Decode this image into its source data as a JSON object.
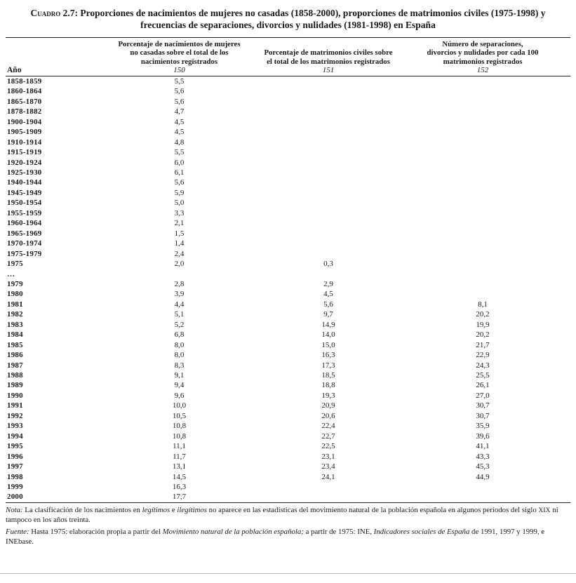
{
  "page": {
    "title_label": "Cuadro 2.7:",
    "title_text": "Proporciones de nacimientos de mujeres no casadas (1858-2000), proporciones de matrimonios civiles (1975-1998) y frecuencias de separaciones, divorcios y nulidades (1981-1998) en España"
  },
  "table": {
    "columns": [
      {
        "label": "Año",
        "number": ""
      },
      {
        "label": "Porcentaje de nacimientos de mujeres\nno casadas sobre el total de los\nnacimientos registrados",
        "number": "150"
      },
      {
        "label": "Porcentaje de matrimonios civiles sobre\nel total de los matrimonios registrados",
        "number": "151"
      },
      {
        "label": "Número de separaciones,\ndivorcios y nulidades por cada 100\nmatrimonios registrados",
        "number": "152"
      }
    ],
    "rows": [
      [
        "1858-1859",
        "5,5",
        "",
        ""
      ],
      [
        "1860-1864",
        "5,6",
        "",
        ""
      ],
      [
        "1865-1870",
        "5,6",
        "",
        ""
      ],
      [
        "1878-1882",
        "4,7",
        "",
        ""
      ],
      [
        "1900-1904",
        "4,5",
        "",
        ""
      ],
      [
        "1905-1909",
        "4,5",
        "",
        ""
      ],
      [
        "1910-1914",
        "4,8",
        "",
        ""
      ],
      [
        "1915-1919",
        "5,5",
        "",
        ""
      ],
      [
        "1920-1924",
        "6,0",
        "",
        ""
      ],
      [
        "1925-1930",
        "6,1",
        "",
        ""
      ],
      [
        "1940-1944",
        "5,6",
        "",
        ""
      ],
      [
        "1945-1949",
        "5,9",
        "",
        ""
      ],
      [
        "1950-1954",
        "5,0",
        "",
        ""
      ],
      [
        "1955-1959",
        "3,3",
        "",
        ""
      ],
      [
        "1960-1964",
        "2,1",
        "",
        ""
      ],
      [
        "1965-1969",
        "1,5",
        "",
        ""
      ],
      [
        "1970-1974",
        "1,4",
        "",
        ""
      ],
      [
        "1975-1979",
        "2,4",
        "",
        ""
      ],
      [
        "1975",
        "2,0",
        "0,3",
        ""
      ],
      [
        "…",
        "",
        "",
        ""
      ],
      [
        "1979",
        "2,8",
        "2,9",
        ""
      ],
      [
        "1980",
        "3,9",
        "4,5",
        ""
      ],
      [
        "1981",
        "4,4",
        "5,6",
        "8,1"
      ],
      [
        "1982",
        "5,1",
        "9,7",
        "20,2"
      ],
      [
        "1983",
        "5,2",
        "14,9",
        "19,9"
      ],
      [
        "1984",
        "6,8",
        "14,0",
        "20,2"
      ],
      [
        "1985",
        "8,0",
        "15,0",
        "21,7"
      ],
      [
        "1986",
        "8,0",
        "16,3",
        "22,9"
      ],
      [
        "1987",
        "8,3",
        "17,3",
        "24,3"
      ],
      [
        "1988",
        "9,1",
        "18,5",
        "25,5"
      ],
      [
        "1989",
        "9,4",
        "18,8",
        "26,1"
      ],
      [
        "1990",
        "9,6",
        "19,3",
        "27,0"
      ],
      [
        "1991",
        "10,0",
        "20,9",
        "30,7"
      ],
      [
        "1992",
        "10,5",
        "20,6",
        "30,7"
      ],
      [
        "1993",
        "10,8",
        "22,4",
        "35,9"
      ],
      [
        "1994",
        "10,8",
        "22,7",
        "39,6"
      ],
      [
        "1995",
        "11,1",
        "22,5",
        "41,1"
      ],
      [
        "1996",
        "11,7",
        "23,1",
        "43,3"
      ],
      [
        "1997",
        "13,1",
        "23,4",
        "45,3"
      ],
      [
        "1998",
        "14,5",
        "24,1",
        "44,9"
      ],
      [
        "1999",
        "16,3",
        "",
        ""
      ],
      [
        "2000",
        "17,7",
        "",
        ""
      ]
    ]
  },
  "notes": {
    "nota_segments": [
      {
        "text": "Nota:",
        "italic": true
      },
      {
        "text": " La clasificación de los nacimientos en ",
        "italic": false
      },
      {
        "text": "legítimos",
        "italic": true
      },
      {
        "text": " e ",
        "italic": false
      },
      {
        "text": "ilegítimos",
        "italic": true
      },
      {
        "text": " no aparece en las estadísticas del movimiento natural de la población española en algunos períodos del siglo ",
        "italic": false
      },
      {
        "text": "XIX",
        "italic": false,
        "smallcaps": true
      },
      {
        "text": " ni tampoco en los años treinta.",
        "italic": false
      }
    ],
    "fuente_segments": [
      {
        "text": "Fuente:",
        "italic": true
      },
      {
        "text": " Hasta 1975: elaboración propia a partir del ",
        "italic": false
      },
      {
        "text": "Movimiento natural de la población española;",
        "italic": true
      },
      {
        "text": " a partir de 1975: INE, ",
        "italic": false
      },
      {
        "text": "Indicadores sociales de España",
        "italic": true
      },
      {
        "text": " de 1991, 1997 y 1999, e INEbase.",
        "italic": false
      }
    ]
  }
}
